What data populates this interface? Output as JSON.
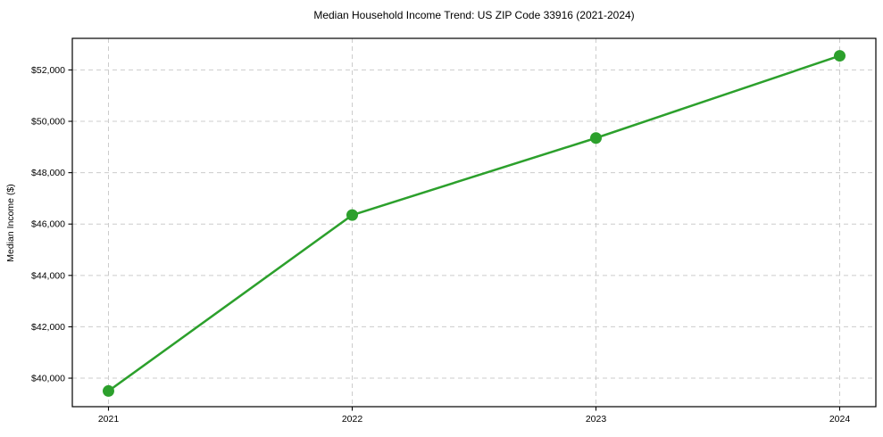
{
  "chart_data": {
    "type": "line",
    "title": "Median Household Income Trend: US ZIP Code 33916 (2021-2024)",
    "xlabel": "",
    "ylabel": "Median Income ($)",
    "categories": [
      "2021",
      "2022",
      "2023",
      "2024"
    ],
    "values": [
      39500,
      46350,
      49350,
      52550
    ],
    "yticks": [
      40000,
      42000,
      44000,
      46000,
      48000,
      50000,
      52000
    ],
    "ytick_labels": [
      "$40,000",
      "$42,000",
      "$44,000",
      "$46,000",
      "$48,000",
      "$50,000",
      "$52,000"
    ],
    "ylim": [
      38890,
      53230
    ],
    "grid": "both, dashed",
    "legend": "none",
    "marker": "circle",
    "colors": {
      "line": "#2ca02c",
      "marker": "#2ca02c",
      "grid": "#cccccc",
      "axis": "#000000",
      "text": "#000000",
      "background": "#ffffff"
    }
  }
}
